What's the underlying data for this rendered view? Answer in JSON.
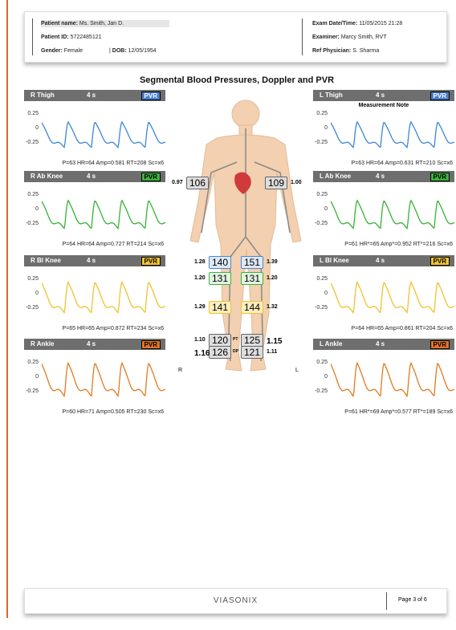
{
  "header": {
    "patient_name_label": "Patient name:",
    "patient_name": "Ms. Smith, Jan D.",
    "patient_id_label": "Patient ID:",
    "patient_id": "5722485121",
    "gender_label": "Gender:",
    "gender": "Female",
    "dob_label": "DOB:",
    "dob": "12/05/1954",
    "exam_label": "Exam Date/Time:",
    "exam": "11/05/2015 21:28",
    "examiner_label": "Examiner:",
    "examiner": "Marcy Smith, RVT",
    "physician_label": "Ref Physician:",
    "physician": "S. Sharma"
  },
  "title": "Segmental Blood Pressures, Doppler and PVR",
  "axis_labels": [
    "0.25",
    "0",
    "-0.25"
  ],
  "note": "Measurement Note",
  "panels": [
    {
      "title": "R Thigh",
      "duration": "4 s",
      "badge": "PVR",
      "stats": "P=63 HR=64 Amp=0.581 RT=208 Sc=x6"
    },
    {
      "title": "R Ab Knee",
      "duration": "4 s",
      "badge": "PVR",
      "stats": "P=64 HR=64 Amp=0.727 RT=214 Sc=x6"
    },
    {
      "title": "R Bl Knee",
      "duration": "4 s",
      "badge": "PVR",
      "stats": "P=65 HR=65 Amp=0.872 RT=234 Sc=x6"
    },
    {
      "title": "R Ankle",
      "duration": "4 s",
      "badge": "PVR",
      "stats": "P=60 HR=71 Amp=0.505 RT=230 Sc=x6"
    },
    {
      "title": "L Thigh",
      "duration": "4 s",
      "badge": "PVR",
      "stats": "P=63 HR=64 Amp=0.631 RT=210 Sc=x6"
    },
    {
      "title": "L Ab Knee",
      "duration": "4 s",
      "badge": "PVR",
      "stats": "P=61 HR*=65 Amp*=0.952 RT*=216 Sc=x6"
    },
    {
      "title": "L Bl Knee",
      "duration": "4 s",
      "badge": "PVR",
      "stats": "P=64 HR=65 Amp=0.861 RT=204 Sc=x6"
    },
    {
      "title": "L Ankle",
      "duration": "4 s",
      "badge": "PVR",
      "stats": "P=61 HR*=69 Amp*=0.577 RT*=189 Sc=x6"
    }
  ],
  "pressures": [
    {
      "value": "106",
      "ratio": "0.97"
    },
    {
      "value": "109",
      "ratio": "1.00"
    },
    {
      "value": "140",
      "ratio": "1.28"
    },
    {
      "value": "151",
      "ratio": "1.39"
    },
    {
      "value": "131",
      "ratio": "1.20"
    },
    {
      "value": "131",
      "ratio": "1.20"
    },
    {
      "value": "141",
      "ratio": "1.29"
    },
    {
      "value": "144",
      "ratio": "1.32"
    },
    {
      "value": "120",
      "ratio": "1.10"
    },
    {
      "value": "125",
      "ratio": "1.15"
    },
    {
      "value": "126",
      "ratio": "1.16"
    },
    {
      "value": "121",
      "ratio": "1.11"
    }
  ],
  "vessel_labels": [
    "PT",
    "DP"
  ],
  "sides": [
    "R",
    "L"
  ],
  "footer": {
    "brand": "VIASONIX",
    "page": "Page 3 of 6"
  }
}
